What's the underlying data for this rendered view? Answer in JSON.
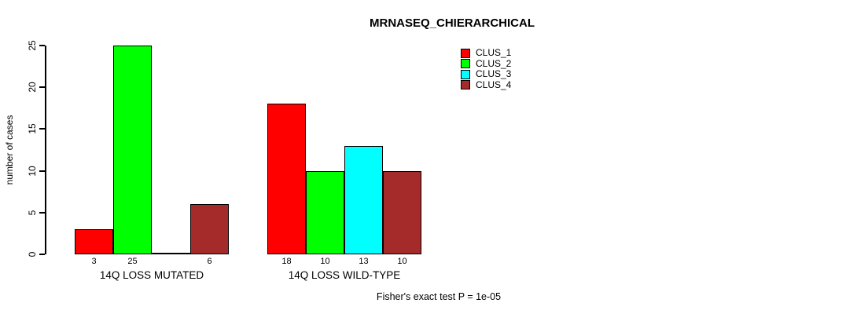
{
  "chart_data": {
    "type": "bar",
    "title": "MRNASEQ_CHIERARCHICAL",
    "ylabel": "number of cases",
    "xlabel": "",
    "ylim": [
      0,
      25
    ],
    "yticks": [
      0,
      5,
      10,
      15,
      20,
      25
    ],
    "categories": [
      "14Q LOSS MUTATED",
      "14Q LOSS WILD-TYPE"
    ],
    "series": [
      {
        "name": "CLUS_1",
        "color": "#ff0000",
        "values": [
          3,
          18
        ]
      },
      {
        "name": "CLUS_2",
        "color": "#00ff00",
        "values": [
          25,
          10
        ]
      },
      {
        "name": "CLUS_3",
        "color": "#00ffff",
        "values": [
          0,
          13
        ]
      },
      {
        "name": "CLUS_4",
        "color": "#a52a2a",
        "values": [
          6,
          10
        ]
      }
    ],
    "bar_value_labels": [
      "3",
      "25",
      "",
      "6",
      "18",
      "10",
      "13",
      "10"
    ],
    "legend_position": "top-right",
    "grid": false,
    "annotation": "Fisher's exact test P = 1e-05",
    "bar_border_color": "#000000",
    "axis_color": "#000000",
    "background_color": "#ffffff"
  }
}
